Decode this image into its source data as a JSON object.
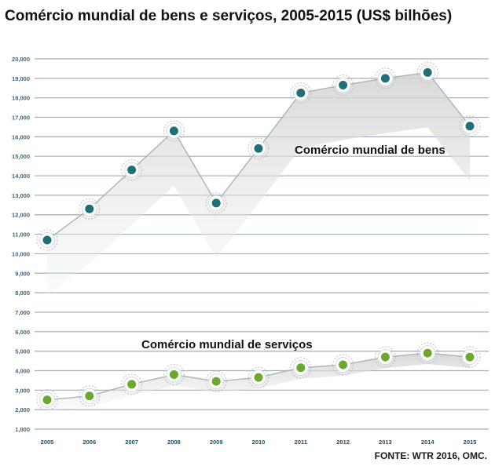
{
  "title": "Comércio mundial de bens e serviços, 2005-2015 (US$ bilhões)",
  "source": "FONTE: WTR 2016,  OMC.",
  "chart_data": {
    "type": "line",
    "x": [
      "2005",
      "2006",
      "2007",
      "2008",
      "2009",
      "2010",
      "2011",
      "2012",
      "2013",
      "2014",
      "2015"
    ],
    "y_ticks": [
      "1,000",
      "2,000",
      "3,000",
      "4,000",
      "5,000",
      "6,000",
      "7,000",
      "8,000",
      "9,000",
      "10,000",
      "11,000",
      "12,000",
      "13,000",
      "14,000",
      "15,000",
      "16,000",
      "17,000",
      "18,000",
      "19,000",
      "20,000"
    ],
    "ylim": [
      1000,
      20000
    ],
    "grid": true,
    "series": [
      {
        "name": "Comércio mundial de bens",
        "values": [
          10700,
          12300,
          14300,
          16300,
          12600,
          15400,
          18250,
          18650,
          19000,
          19300,
          16550
        ],
        "color": "#1f6f78"
      },
      {
        "name": "Comércio mundial de serviços",
        "values": [
          2500,
          2700,
          3300,
          3800,
          3450,
          3650,
          4150,
          4300,
          4700,
          4900,
          4700
        ],
        "color": "#6aa82f"
      }
    ]
  }
}
